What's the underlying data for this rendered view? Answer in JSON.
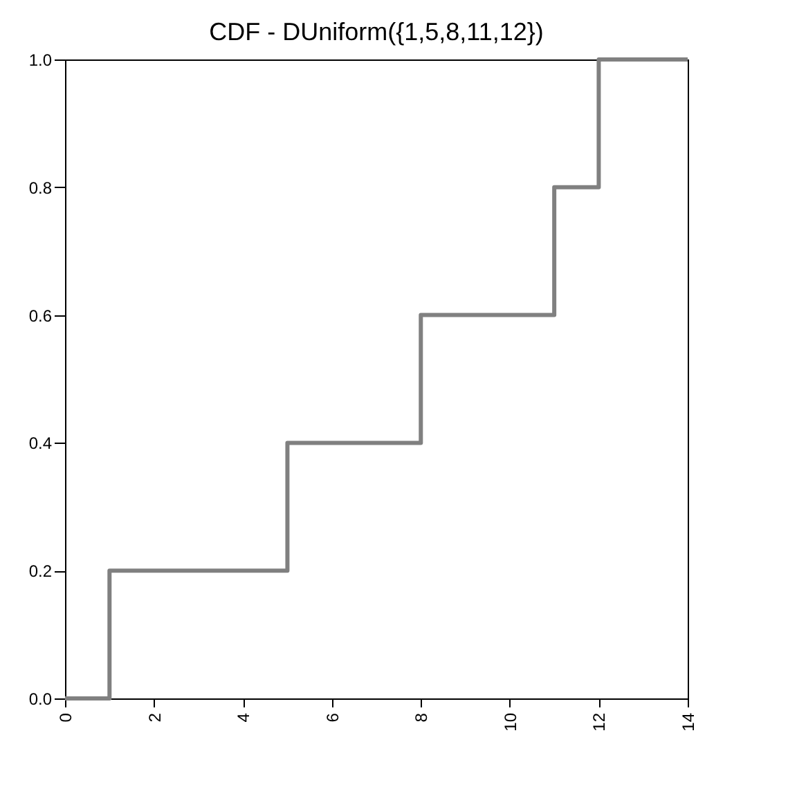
{
  "chart_data": {
    "type": "step",
    "title": "CDF - DUniform({1,5,8,11,12})",
    "x": [
      0,
      1,
      5,
      8,
      11,
      12,
      14
    ],
    "series": [
      {
        "color": "#808080",
        "values": [
          0,
          0.2,
          0.4,
          0.6,
          0.8,
          1.0,
          1.0
        ]
      }
    ],
    "xlim": [
      0,
      14
    ],
    "xticks": [
      0,
      2,
      4,
      6,
      8,
      10,
      12,
      14
    ],
    "ylim": [
      0,
      1
    ],
    "yticks": [
      {
        "value": 0,
        "label": "0.0"
      },
      {
        "value": 0.2,
        "label": "0.2"
      },
      {
        "value": 0.4,
        "label": "0.4"
      },
      {
        "value": 0.6,
        "label": "0.6"
      },
      {
        "value": 0.8,
        "label": "0.8"
      },
      {
        "value": 1,
        "label": "1.0"
      }
    ],
    "grid": false,
    "line_style": "solid",
    "marker": "none"
  }
}
